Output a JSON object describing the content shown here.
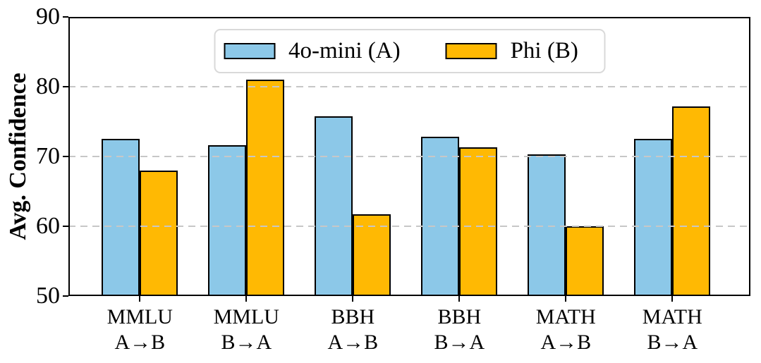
{
  "chart_data": {
    "type": "bar",
    "title": "",
    "ylabel": "Avg. Confidence",
    "xlabel": "",
    "ylim": [
      50,
      90
    ],
    "yticks": [
      50,
      60,
      70,
      80,
      90
    ],
    "gridline_values": [
      60,
      70,
      80
    ],
    "grid_style": "dashed",
    "grid_color": "#c7c7c7",
    "legend_position": "upper center",
    "bar_edge_color": "#000000",
    "categories": [
      "MMLU A→B",
      "MMLU B→A",
      "BBH A→B",
      "BBH B→A",
      "MATH A→B",
      "MATH B→A"
    ],
    "category_lines": [
      [
        "MMLU",
        "A→B"
      ],
      [
        "MMLU",
        "B→A"
      ],
      [
        "BBH",
        "A→B"
      ],
      [
        "BBH",
        "B→A"
      ],
      [
        "MATH",
        "A→B"
      ],
      [
        "MATH",
        "B→A"
      ]
    ],
    "series": [
      {
        "name": "4o-mini (A)",
        "color": "#8CC8E8",
        "values": [
          72.5,
          71.6,
          75.8,
          72.8,
          70.3,
          72.5
        ]
      },
      {
        "name": "Phi (B)",
        "color": "#FFB903",
        "values": [
          68.0,
          81.0,
          61.7,
          71.3,
          60.0,
          77.2
        ]
      }
    ]
  }
}
